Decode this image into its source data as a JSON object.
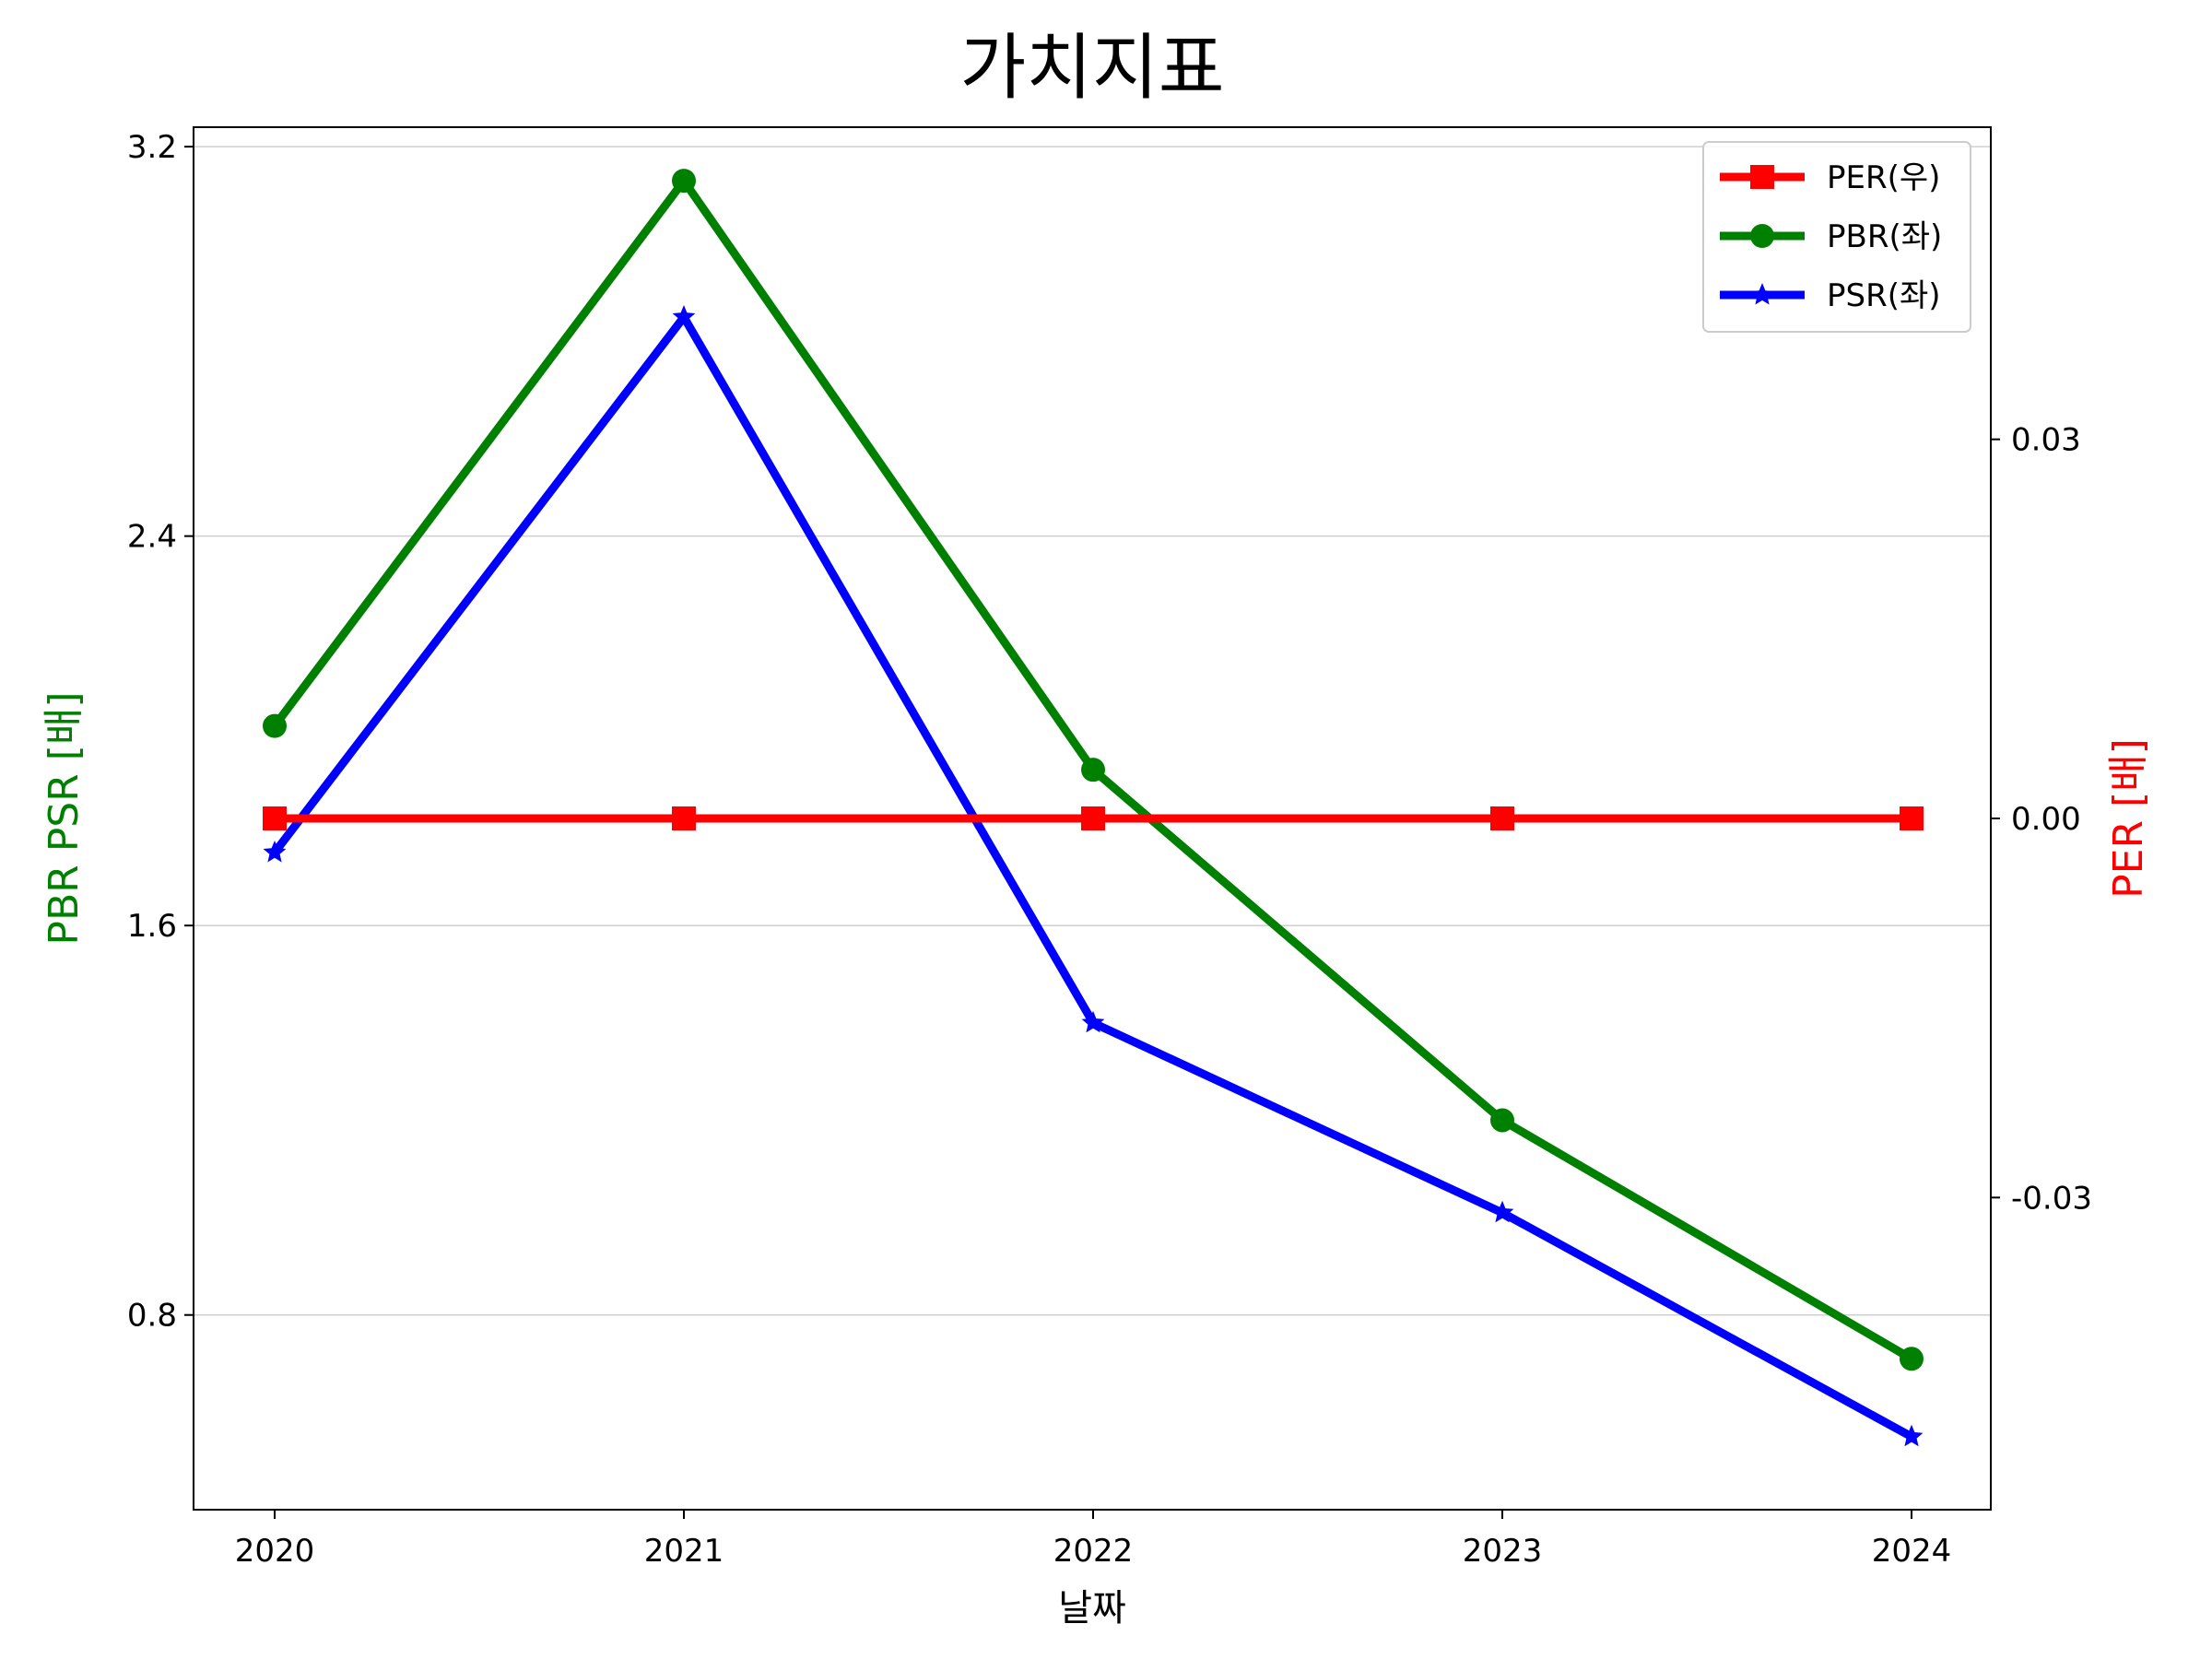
{
  "chart_data": {
    "type": "line",
    "title": "가치지표",
    "xlabel": "날짜",
    "ylabel_left": "PBR PSR [배]",
    "ylabel_right": "PER [배]",
    "categories": [
      "2020",
      "2021",
      "2022",
      "2023",
      "2024"
    ],
    "left_axis": {
      "ylim": [
        0.4,
        3.24
      ],
      "ticks": [
        0.8,
        1.6,
        2.4,
        3.2
      ],
      "tick_labels": [
        "0.8",
        "1.6",
        "2.4",
        "3.2"
      ],
      "label_color": "#008000"
    },
    "right_axis": {
      "ylim": [
        -0.0547,
        0.0547
      ],
      "ticks": [
        -0.03,
        0.0,
        0.03
      ],
      "tick_labels": [
        "-0.03",
        "0.00",
        "0.03"
      ],
      "label_color": "#ff0000"
    },
    "grid": "horizontal",
    "legend_position": "top-right",
    "series": [
      {
        "name": "PER(우)",
        "axis": "right",
        "color": "#ff0000",
        "marker": "square",
        "values": [
          0.0,
          0.0,
          0.0,
          0.0,
          0.0
        ]
      },
      {
        "name": "PBR(좌)",
        "axis": "left",
        "color": "#008000",
        "marker": "circle",
        "values": [
          2.01,
          3.13,
          1.92,
          1.2,
          0.71
        ]
      },
      {
        "name": "PSR(좌)",
        "axis": "left",
        "color": "#0000ff",
        "marker": "star",
        "values": [
          1.75,
          2.85,
          1.4,
          1.01,
          0.55
        ]
      }
    ]
  }
}
